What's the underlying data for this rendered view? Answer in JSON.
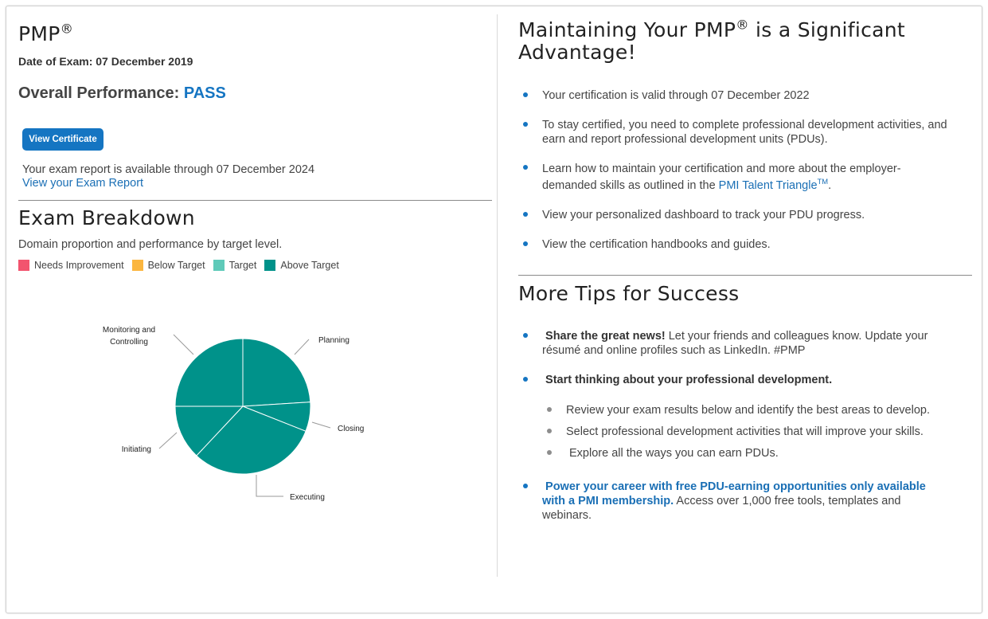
{
  "left": {
    "title": "PMP",
    "title_reg": "®",
    "exam_date": "Date of Exam: 07 December 2019",
    "overall_label": "Overall Performance: ",
    "overall_value": "PASS",
    "view_certificate": "View Certificate",
    "report_text": "Your exam report is available through 07 December 2024",
    "report_link": "View your Exam Report"
  },
  "breakdown": {
    "title": "Exam Breakdown",
    "subtitle": "Domain proportion and performance by target level.",
    "legend": [
      {
        "label": "Needs Improvement",
        "color": "#f2546e"
      },
      {
        "label": "Below Target",
        "color": "#fbb63f"
      },
      {
        "label": "Target",
        "color": "#5fcab9"
      },
      {
        "label": "Above Target",
        "color": "#00928a"
      }
    ]
  },
  "chart_data": {
    "type": "pie",
    "slices": [
      {
        "name": "Initiating",
        "value": 13,
        "color": "#00928a"
      },
      {
        "name": "Planning",
        "value": 24,
        "color": "#00928a"
      },
      {
        "name": "Executing",
        "value": 31,
        "color": "#00928a"
      },
      {
        "name": "Monitoring and Controlling",
        "value": 25,
        "color": "#00928a"
      },
      {
        "name": "Closing",
        "value": 7,
        "color": "#00928a"
      }
    ]
  },
  "maintaining": {
    "title_a": "Maintaining Your PMP",
    "title_reg": "®",
    "title_b": " is a Significant Advantage!",
    "item1": "Your certification is valid through 07 December 2022",
    "item2": "To stay certified, you need to complete professional development activities, and earn and report professional development units (PDUs).",
    "item3_a": "Learn how to maintain your certification and more about the employer-demanded skills as outlined in the ",
    "item3_link": "PMI Talent Triangle",
    "item3_tm": "TM",
    "item3_end": ".",
    "item4": "View your personalized dashboard to track your PDU progress.",
    "item5": "View the certification handbooks and guides."
  },
  "tips": {
    "title": "More Tips for Success",
    "tip1_bold": "Share the great news!",
    "tip1_rest": " Let your friends and colleagues know. Update your résumé and online profiles such as LinkedIn. #PMP",
    "tip2_bold": "Start thinking about your professional development.",
    "sub1": "Review your exam results below and identify the best areas to develop.",
    "sub2": "Select professional development activities that will improve your skills.",
    "sub3": "Explore all the ways you can earn PDUs.",
    "tip3_bold": "Power your career with free PDU-earning opportunities only available with a PMI membership.",
    "tip3_rest": " Access over 1,000 free tools, templates and webinars."
  }
}
